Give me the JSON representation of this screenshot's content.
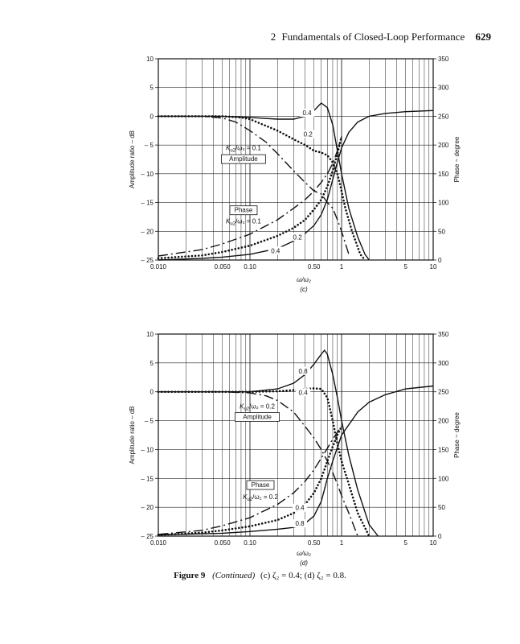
{
  "header": {
    "chapter_number": "2",
    "chapter_title": "Fundamentals of Closed-Loop Performance",
    "page_number": "629"
  },
  "caption": {
    "label": "Figure 9",
    "continued": "(Continued)",
    "text": "(c) ζ₂ = 0.4; (d) ζ₂ = 0.8."
  },
  "chart_data": [
    {
      "type": "line",
      "sublabel": "(c)",
      "xlabel": "ω/ω₂",
      "ylabel": "Amplitude ratio – dB",
      "y2label": "Phase ~ degree",
      "xscale": "log",
      "xlim": [
        0.01,
        10
      ],
      "ylim": [
        -25,
        10
      ],
      "y2lim": [
        0,
        350
      ],
      "x_ticks": [
        "0.010",
        "0.050",
        "0.10",
        "0.50",
        "1",
        "5",
        "10"
      ],
      "x_tick_values": [
        0.01,
        0.05,
        0.1,
        0.5,
        1,
        5,
        10
      ],
      "y_ticks": [
        "10",
        "5",
        "0",
        "– 5",
        "– 10",
        "– 15",
        "– 20",
        "– 25"
      ],
      "y_tick_values": [
        10,
        5,
        0,
        -5,
        -10,
        -15,
        -20,
        -25
      ],
      "y2_ticks": [
        "350",
        "300",
        "250",
        "200",
        "150",
        "100",
        "50",
        "0"
      ],
      "y2_tick_values": [
        350,
        300,
        250,
        200,
        150,
        100,
        50,
        0
      ],
      "annotations": {
        "ratio_label_amp": "K",
        "ratio_label_amp_sub": "u2",
        "ratio_label_amp_rest": "/ω₂ = 0.1",
        "amplitude_box": "Amplitude",
        "phase_box": "Phase",
        "ratio_label_phase": "K",
        "ratio_label_phase_sub": "u2",
        "ratio_label_phase_rest": "/ω₂ = 0.1",
        "amp_tag_a": "0.4",
        "amp_tag_b": "0.2",
        "phase_tag_a": "0.2",
        "phase_tag_b": "0.4"
      },
      "series": [
        {
          "kind": "amplitude",
          "style": "solid",
          "tag": "0.4",
          "x": [
            0.01,
            0.05,
            0.1,
            0.2,
            0.3,
            0.4,
            0.5,
            0.6,
            0.7,
            0.8,
            0.9,
            1.0,
            1.2,
            1.5,
            1.8,
            2.0
          ],
          "y": [
            0,
            0,
            -0.2,
            -0.5,
            -0.5,
            0,
            1.0,
            2.3,
            1.5,
            -1.5,
            -6,
            -10,
            -16,
            -21,
            -24,
            -25
          ]
        },
        {
          "kind": "amplitude",
          "style": "dotted",
          "tag": "0.2",
          "x": [
            0.01,
            0.05,
            0.08,
            0.1,
            0.2,
            0.3,
            0.4,
            0.5,
            0.6,
            0.7,
            0.8,
            0.9,
            1.0,
            1.1,
            1.3,
            1.6,
            1.8
          ],
          "y": [
            0,
            0,
            -0.2,
            -0.5,
            -2.5,
            -4,
            -5,
            -6,
            -6.3,
            -6.8,
            -8,
            -10,
            -13,
            -16,
            -20,
            -24,
            -25
          ]
        },
        {
          "kind": "amplitude",
          "style": "dashdot",
          "tag": "0.1",
          "x": [
            0.01,
            0.03,
            0.05,
            0.07,
            0.1,
            0.15,
            0.2,
            0.3,
            0.4,
            0.5,
            0.6,
            0.7,
            0.8,
            0.9,
            1.0,
            1.2
          ],
          "y": [
            0,
            0,
            -0.3,
            -1,
            -2.5,
            -4.5,
            -6.5,
            -9.5,
            -11.5,
            -13,
            -13.5,
            -15,
            -16,
            -18,
            -20,
            -24
          ]
        },
        {
          "kind": "phase",
          "style": "solid",
          "tag": "0.4",
          "x": [
            0.01,
            0.03,
            0.05,
            0.1,
            0.2,
            0.3,
            0.4,
            0.5,
            0.6,
            0.7,
            0.8,
            0.9,
            1.0,
            1.2,
            1.5,
            2.0,
            3.0,
            5.0,
            10.0
          ],
          "y": [
            0,
            3,
            5,
            10,
            20,
            33,
            46,
            60,
            79,
            105,
            140,
            170,
            195,
            222,
            240,
            250,
            255,
            258,
            260
          ]
        },
        {
          "kind": "phase",
          "style": "dotted",
          "tag": "0.2",
          "x": [
            0.01,
            0.03,
            0.05,
            0.1,
            0.2,
            0.3,
            0.4,
            0.5,
            0.6,
            0.7,
            0.8,
            0.9,
            1.0
          ],
          "y": [
            3,
            8,
            14,
            25,
            42,
            56,
            70,
            88,
            105,
            128,
            155,
            185,
            215
          ]
        },
        {
          "kind": "phase",
          "style": "dashdot",
          "tag": "0.1",
          "x": [
            0.01,
            0.03,
            0.05,
            0.1,
            0.2,
            0.3,
            0.4,
            0.5,
            0.6,
            0.7,
            0.8,
            0.9,
            1.0
          ],
          "y": [
            7,
            18,
            28,
            45,
            70,
            90,
            105,
            120,
            135,
            150,
            168,
            190,
            215
          ]
        }
      ]
    },
    {
      "type": "line",
      "sublabel": "(d)",
      "xlabel": "ω/ω₂",
      "ylabel": "Amplitude ratio – dB",
      "y2label": "Phase ~ degree",
      "xscale": "log",
      "xlim": [
        0.01,
        10
      ],
      "ylim": [
        -25,
        10
      ],
      "y2lim": [
        0,
        350
      ],
      "x_ticks": [
        "0.010",
        "0.050",
        "0.10",
        "0.50",
        "1",
        "5",
        "10"
      ],
      "x_tick_values": [
        0.01,
        0.05,
        0.1,
        0.5,
        1,
        5,
        10
      ],
      "y_ticks": [
        "10",
        "5",
        "0",
        "– 5",
        "– 10",
        "– 15",
        "– 20",
        "– 25"
      ],
      "y_tick_values": [
        10,
        5,
        0,
        -5,
        -10,
        -15,
        -20,
        -25
      ],
      "y2_ticks": [
        "350",
        "300",
        "250",
        "200",
        "150",
        "100",
        "50",
        "0"
      ],
      "y2_tick_values": [
        350,
        300,
        250,
        200,
        150,
        100,
        50,
        0
      ],
      "annotations": {
        "ratio_label_amp": "K",
        "ratio_label_amp_sub": "u2",
        "ratio_label_amp_rest": "/ω₂ = 0.2",
        "amplitude_box": "Amplitude",
        "phase_box": "Phase",
        "ratio_label_phase": "K",
        "ratio_label_phase_sub": "u2",
        "ratio_label_phase_rest": "/ω₂ = 0.2",
        "amp_tag_a": "0.8",
        "amp_tag_b": "0.4",
        "phase_tag_a": "0.4",
        "phase_tag_b": "0.8"
      },
      "series": [
        {
          "kind": "amplitude",
          "style": "solid",
          "tag": "0.8",
          "x": [
            0.01,
            0.05,
            0.1,
            0.2,
            0.3,
            0.4,
            0.5,
            0.6,
            0.65,
            0.7,
            0.8,
            0.9,
            1.0,
            1.2,
            1.5,
            2.0,
            2.5
          ],
          "y": [
            0,
            0,
            0,
            0.5,
            1.5,
            3.0,
            4.8,
            6.5,
            7.2,
            6.5,
            3,
            -1,
            -5,
            -11,
            -17,
            -23,
            -25
          ]
        },
        {
          "kind": "amplitude",
          "style": "dotted",
          "tag": "0.4",
          "x": [
            0.01,
            0.05,
            0.1,
            0.2,
            0.3,
            0.4,
            0.5,
            0.6,
            0.7,
            0.8,
            0.9,
            1.0,
            1.2,
            1.5,
            2.0
          ],
          "y": [
            0,
            0,
            0,
            0.1,
            0.3,
            0.5,
            0.6,
            0.5,
            -1,
            -5,
            -9,
            -12,
            -16,
            -21,
            -25
          ]
        },
        {
          "kind": "amplitude",
          "style": "dashdot",
          "tag": "0.2",
          "x": [
            0.01,
            0.05,
            0.1,
            0.15,
            0.2,
            0.3,
            0.4,
            0.5,
            0.6,
            0.7,
            0.8,
            0.9,
            1.0,
            1.2,
            1.5
          ],
          "y": [
            0,
            0,
            -0.2,
            -0.7,
            -1.5,
            -3.5,
            -6,
            -8,
            -10,
            -12,
            -14,
            -16,
            -18,
            -21,
            -25
          ]
        },
        {
          "kind": "phase",
          "style": "solid",
          "tag": "0.8",
          "x": [
            0.01,
            0.03,
            0.05,
            0.1,
            0.2,
            0.3,
            0.4,
            0.5,
            0.6,
            0.7,
            0.8,
            1.0,
            1.5,
            2.0,
            3.0,
            5.0,
            10.0
          ],
          "y": [
            2,
            4,
            5,
            8,
            12,
            15,
            22,
            35,
            60,
            100,
            130,
            175,
            215,
            232,
            245,
            255,
            260
          ]
        },
        {
          "kind": "phase",
          "style": "dotted",
          "tag": "0.4",
          "x": [
            0.01,
            0.03,
            0.05,
            0.1,
            0.2,
            0.3,
            0.4,
            0.5,
            0.6,
            0.7,
            0.8,
            0.9,
            1.0
          ],
          "y": [
            2,
            6,
            10,
            17,
            28,
            40,
            55,
            75,
            100,
            130,
            155,
            175,
            190
          ]
        },
        {
          "kind": "phase",
          "style": "dashdot",
          "tag": "0.2",
          "x": [
            0.01,
            0.03,
            0.05,
            0.1,
            0.2,
            0.3,
            0.4,
            0.5,
            0.6,
            0.7,
            0.8,
            0.9,
            1.0
          ],
          "y": [
            3,
            10,
            18,
            32,
            55,
            75,
            95,
            115,
            135,
            152,
            168,
            180,
            190
          ]
        }
      ]
    }
  ]
}
